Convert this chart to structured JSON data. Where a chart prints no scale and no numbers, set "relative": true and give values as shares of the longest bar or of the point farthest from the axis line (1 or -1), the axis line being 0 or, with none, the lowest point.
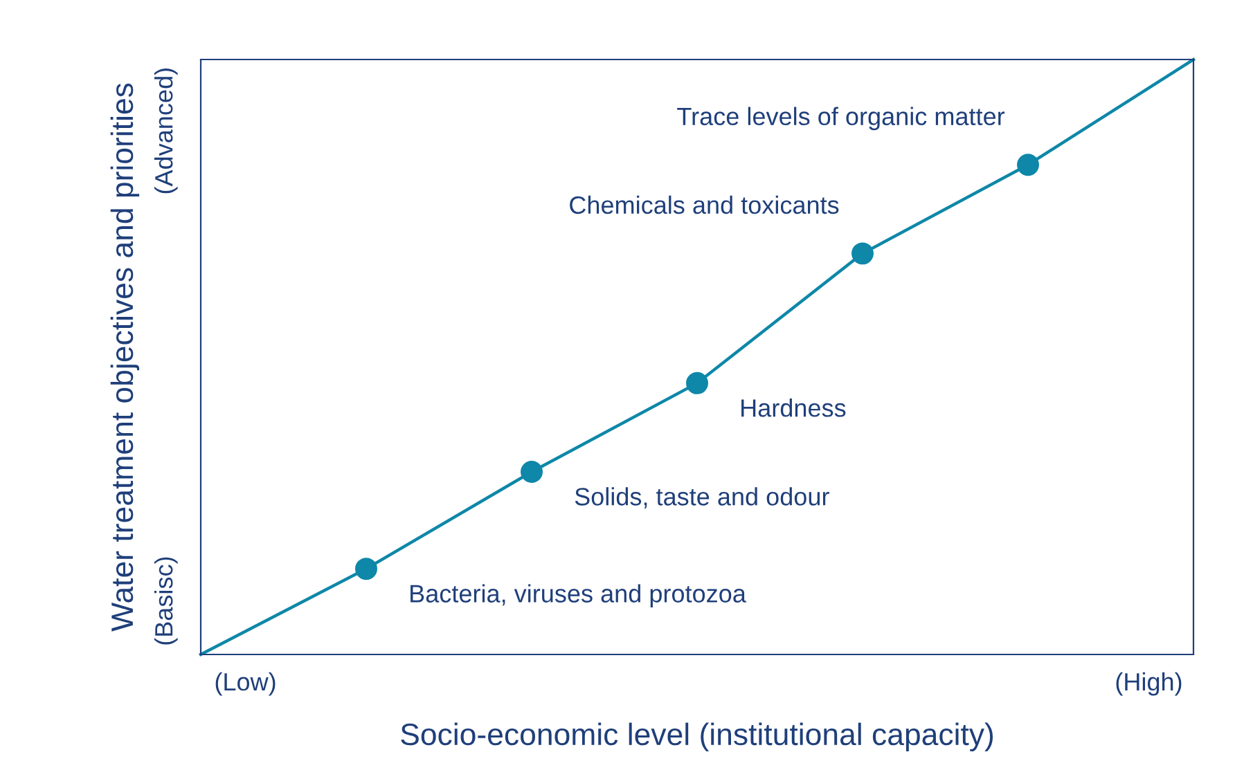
{
  "chart_data": {
    "type": "line",
    "relative": true,
    "xlabel": "Socio-economic level (institutional capacity)",
    "ylabel": "Water treatment objectives and priorities",
    "categories": [
      null,
      null,
      null,
      null,
      null,
      null,
      null
    ],
    "series": [
      {
        "color": "#0e87a8",
        "values": [
          0,
          0.144,
          0.307,
          0.456,
          0.674,
          0.823,
          1
        ],
        "marker": "circle"
      }
    ],
    "annotations": [
      "(Low)",
      "(High)",
      "(Basisc)",
      "(Advanced)",
      "Bacteria, viruses and protozoa",
      "Solids, taste and odour",
      "Hardness",
      "Chemicals and toxicants",
      "Trace levels of organic matter"
    ],
    "legend": false
  }
}
